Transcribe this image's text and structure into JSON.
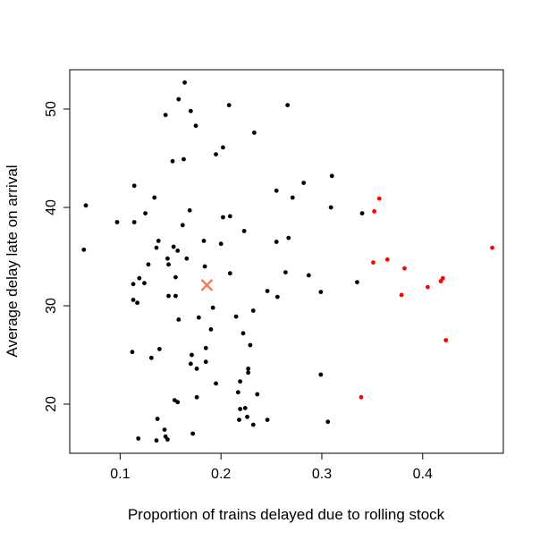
{
  "chart_data": {
    "type": "scatter",
    "title": "",
    "xlabel": "Proportion of trains delayed due to rolling stock",
    "ylabel": "Average delay late on arrival",
    "xlim": [
      0.05,
      0.48
    ],
    "ylim": [
      15,
      54
    ],
    "x_ticks": [
      "0.1",
      "0.2",
      "0.3",
      "0.4"
    ],
    "y_ticks": [
      "20",
      "30",
      "40",
      "50"
    ],
    "x_tick_values": [
      0.1,
      0.2,
      0.3,
      0.4
    ],
    "y_tick_values": [
      20,
      30,
      40,
      50
    ],
    "grid": false,
    "series": [
      {
        "color": "#000000",
        "marker": "dot",
        "points": [
          [
            0.164,
            52.7
          ],
          [
            0.158,
            51.0
          ],
          [
            0.17,
            49.8
          ],
          [
            0.145,
            49.4
          ],
          [
            0.175,
            48.3
          ],
          [
            0.208,
            50.4
          ],
          [
            0.266,
            50.4
          ],
          [
            0.233,
            47.6
          ],
          [
            0.202,
            46.1
          ],
          [
            0.195,
            45.4
          ],
          [
            0.163,
            44.9
          ],
          [
            0.152,
            44.7
          ],
          [
            0.31,
            43.2
          ],
          [
            0.282,
            42.5
          ],
          [
            0.114,
            42.2
          ],
          [
            0.255,
            41.7
          ],
          [
            0.271,
            41.0
          ],
          [
            0.134,
            41.0
          ],
          [
            0.066,
            40.2
          ],
          [
            0.309,
            40.0
          ],
          [
            0.169,
            39.7
          ],
          [
            0.125,
            39.4
          ],
          [
            0.34,
            39.4
          ],
          [
            0.202,
            39.0
          ],
          [
            0.209,
            39.1
          ],
          [
            0.097,
            38.5
          ],
          [
            0.114,
            38.5
          ],
          [
            0.162,
            38.2
          ],
          [
            0.223,
            37.6
          ],
          [
            0.267,
            36.9
          ],
          [
            0.138,
            36.6
          ],
          [
            0.183,
            36.6
          ],
          [
            0.2,
            36.3
          ],
          [
            0.255,
            36.5
          ],
          [
            0.136,
            35.9
          ],
          [
            0.153,
            36.0
          ],
          [
            0.064,
            35.7
          ],
          [
            0.157,
            35.6
          ],
          [
            0.147,
            34.8
          ],
          [
            0.166,
            34.8
          ],
          [
            0.128,
            34.2
          ],
          [
            0.148,
            34.2
          ],
          [
            0.184,
            34.0
          ],
          [
            0.209,
            33.3
          ],
          [
            0.264,
            33.4
          ],
          [
            0.287,
            33.1
          ],
          [
            0.155,
            32.9
          ],
          [
            0.119,
            32.8
          ],
          [
            0.124,
            32.3
          ],
          [
            0.113,
            32.2
          ],
          [
            0.335,
            32.4
          ],
          [
            0.246,
            31.5
          ],
          [
            0.299,
            31.4
          ],
          [
            0.148,
            31.0
          ],
          [
            0.155,
            31.0
          ],
          [
            0.256,
            30.9
          ],
          [
            0.113,
            30.6
          ],
          [
            0.117,
            30.3
          ],
          [
            0.192,
            29.8
          ],
          [
            0.232,
            29.5
          ],
          [
            0.215,
            28.9
          ],
          [
            0.178,
            28.8
          ],
          [
            0.158,
            28.6
          ],
          [
            0.19,
            27.6
          ],
          [
            0.222,
            27.2
          ],
          [
            0.229,
            26.0
          ],
          [
            0.185,
            25.7
          ],
          [
            0.139,
            25.6
          ],
          [
            0.112,
            25.3
          ],
          [
            0.171,
            25.0
          ],
          [
            0.131,
            24.7
          ],
          [
            0.185,
            24.3
          ],
          [
            0.17,
            24.1
          ],
          [
            0.227,
            23.6
          ],
          [
            0.176,
            23.6
          ],
          [
            0.227,
            23.2
          ],
          [
            0.299,
            23.0
          ],
          [
            0.219,
            22.3
          ],
          [
            0.195,
            22.1
          ],
          [
            0.217,
            21.2
          ],
          [
            0.236,
            21.0
          ],
          [
            0.176,
            20.7
          ],
          [
            0.154,
            20.4
          ],
          [
            0.157,
            20.2
          ],
          [
            0.219,
            19.5
          ],
          [
            0.224,
            19.6
          ],
          [
            0.226,
            18.7
          ],
          [
            0.137,
            18.5
          ],
          [
            0.218,
            18.4
          ],
          [
            0.246,
            18.4
          ],
          [
            0.306,
            18.2
          ],
          [
            0.232,
            17.9
          ],
          [
            0.144,
            17.4
          ],
          [
            0.172,
            17.0
          ],
          [
            0.145,
            16.7
          ],
          [
            0.147,
            16.4
          ],
          [
            0.118,
            16.5
          ],
          [
            0.136,
            16.3
          ]
        ]
      },
      {
        "color": "#ff0000",
        "marker": "dot",
        "points": [
          [
            0.357,
            40.9
          ],
          [
            0.352,
            39.6
          ],
          [
            0.469,
            35.9
          ],
          [
            0.365,
            34.7
          ],
          [
            0.351,
            34.4
          ],
          [
            0.382,
            33.8
          ],
          [
            0.42,
            32.8
          ],
          [
            0.418,
            32.5
          ],
          [
            0.405,
            31.9
          ],
          [
            0.379,
            31.1
          ],
          [
            0.423,
            26.5
          ],
          [
            0.339,
            20.7
          ]
        ]
      },
      {
        "color": "#f08060",
        "marker": "cross",
        "points": [
          [
            0.186,
            32.1
          ]
        ]
      }
    ]
  }
}
